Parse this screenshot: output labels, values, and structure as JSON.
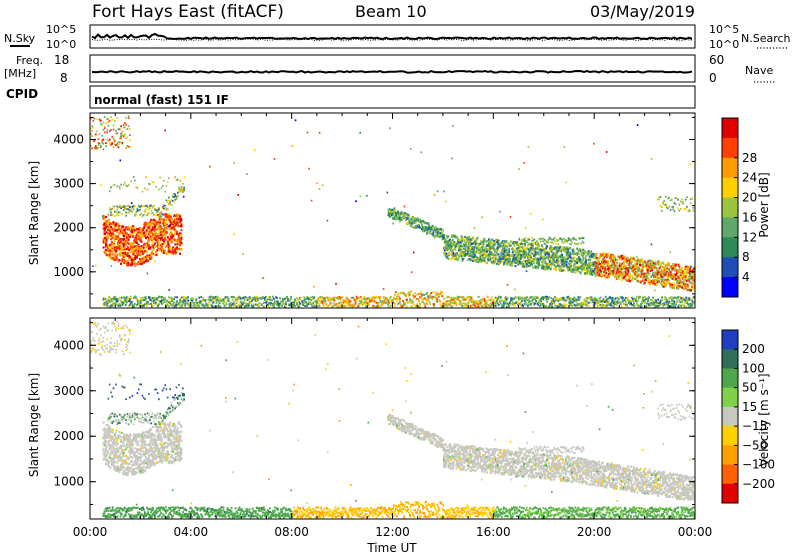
{
  "header": {
    "site": "Fort Hays East (fitACF)",
    "beam": "Beam 10",
    "date": "03/May/2019"
  },
  "labels": {
    "nsky": "N.Sky",
    "nsearch": "N.Search",
    "freq_top": "Freq.",
    "freq_unit": "[MHz]",
    "nave": "Nave",
    "cpid": "CPID",
    "program": "normal (fast) 151 IF",
    "yaxis": "Slant Range [km]",
    "xaxis": "Time UT",
    "power_cb": "Power [dB]",
    "velocity_cb": "Velocity [m s⁻¹]"
  },
  "strip_ticks": {
    "noise_left": [
      "10^5",
      "10^0"
    ],
    "noise_right": [
      "10^5",
      "10^0"
    ],
    "freq_left": [
      "18",
      "8"
    ],
    "freq_right": [
      "60",
      "0"
    ]
  },
  "chart_data": [
    {
      "type": "heatmap",
      "name": "power",
      "x_ticks": [
        "00:00",
        "04:00",
        "08:00",
        "12:00",
        "16:00",
        "20:00",
        "00:00"
      ],
      "y_ticks": [
        1000,
        2000,
        3000,
        4000
      ],
      "ylim": [
        180,
        4600
      ],
      "xlim_hours": [
        0,
        24
      ],
      "colorbar_ticks": [
        4,
        8,
        12,
        16,
        20,
        24,
        28
      ],
      "colorbar_colors": [
        "#0000ff",
        "#1f4fb5",
        "#2e8b57",
        "#5fa86a",
        "#9bc53d",
        "#ffd000",
        "#ff9a00",
        "#ff4000",
        "#e00000"
      ]
    },
    {
      "type": "heatmap",
      "name": "velocity",
      "x_ticks": [
        "00:00",
        "04:00",
        "08:00",
        "12:00",
        "16:00",
        "20:00",
        "00:00"
      ],
      "y_ticks": [
        1000,
        2000,
        3000,
        4000
      ],
      "ylim": [
        180,
        4600
      ],
      "xlim_hours": [
        0,
        24
      ],
      "colorbar_ticks": [
        200,
        100,
        50,
        15,
        -15,
        -50,
        -100,
        -200
      ],
      "colorbar_colors": [
        "#1f3fc0",
        "#2e6e5a",
        "#4ca84a",
        "#7fd14a",
        "#c8c8c0",
        "#ffd000",
        "#ffa000",
        "#ff6000",
        "#e00000"
      ]
    }
  ]
}
